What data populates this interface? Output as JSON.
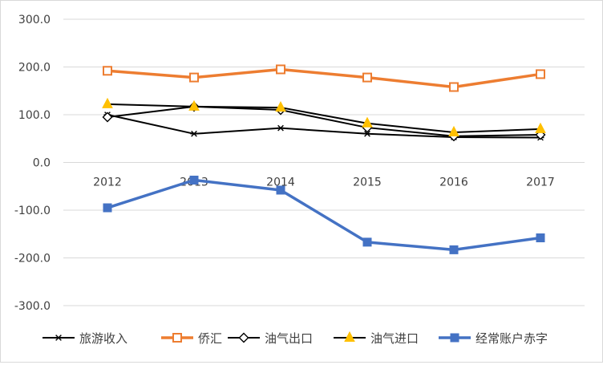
{
  "chart_data": {
    "type": "line",
    "title": "",
    "xlabel": "",
    "ylabel": "",
    "ylim": [
      -300,
      300
    ],
    "yticks": [
      300,
      200,
      100,
      0,
      -100,
      -200,
      -300
    ],
    "ytick_labels": [
      "300.0",
      "200.0",
      "100.0",
      "0.0",
      "-100.0",
      "-200.0",
      "-300.0"
    ],
    "categories": [
      "2012",
      "2013",
      "2014",
      "2015",
      "2016",
      "2017"
    ],
    "grid": true,
    "legend_position": "bottom",
    "series": [
      {
        "name": "旅游收入",
        "values": [
          100,
          60,
          72,
          60,
          53,
          52
        ],
        "color": "#000000",
        "marker": "star"
      },
      {
        "name": "侨汇",
        "values": [
          192,
          178,
          195,
          178,
          158,
          185
        ],
        "color": "#ED7D31",
        "marker": "square-open"
      },
      {
        "name": "油气出口",
        "values": [
          95,
          117,
          110,
          73,
          55,
          58
        ],
        "color": "#000000",
        "marker": "diamond-open"
      },
      {
        "name": "油气进口",
        "values": [
          122,
          117,
          115,
          82,
          63,
          70
        ],
        "color": "#000000",
        "marker": "triangle-yellow"
      },
      {
        "name": "经常账户赤字",
        "values": [
          -95,
          -37,
          -58,
          -167,
          -183,
          -158
        ],
        "color": "#4472C4",
        "marker": "square-filled"
      }
    ]
  }
}
